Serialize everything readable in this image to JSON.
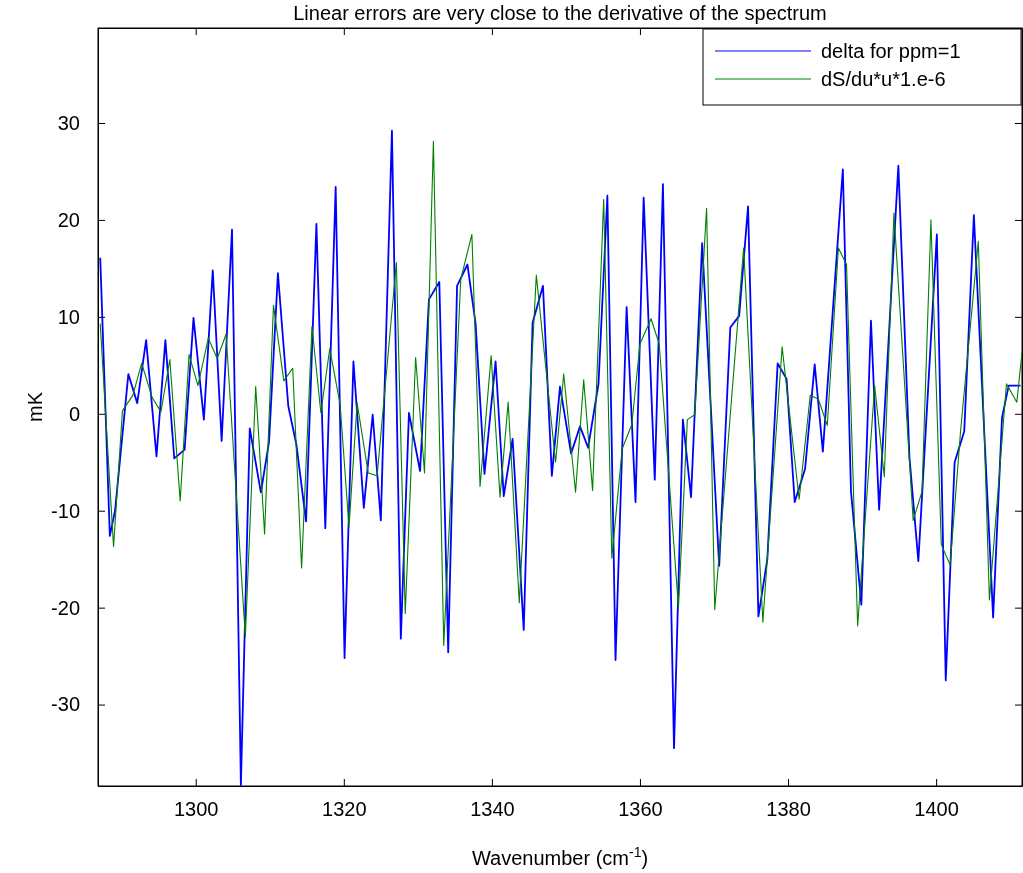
{
  "chart_data": {
    "type": "line",
    "title": "Linear errors are very close to the derivative of the spectrum",
    "xlabel": "Wavenumber (cm$^{-1}$)",
    "ylabel": "mK",
    "xlim": [
      1286.8,
      1411.6
    ],
    "ylim": [
      -38.4,
      39.8
    ],
    "xticks": [
      1300,
      1320,
      1340,
      1360,
      1380,
      1400
    ],
    "yticks": [
      -30,
      -20,
      -10,
      0,
      10,
      20,
      30
    ],
    "grid": false,
    "legend": "top right",
    "marker": "none",
    "line_style": "solid",
    "series": [
      {
        "name": "delta for ppm=1",
        "color": "#0000ff",
        "x": [
          1287.1,
          1288.4,
          1289.1,
          1290.9,
          1292.1,
          1293.3,
          1294.7,
          1295.9,
          1297.1,
          1298.5,
          1299.7,
          1301.1,
          1302.3,
          1303.5,
          1304.9,
          1306.1,
          1307.3,
          1308.8,
          1309.9,
          1311.1,
          1312.5,
          1313.6,
          1314.9,
          1316.3,
          1317.5,
          1318.9,
          1320.1,
          1321.3,
          1322.7,
          1323.9,
          1325.0,
          1326.5,
          1327.7,
          1328.8,
          1330.3,
          1331.5,
          1332.9,
          1334.1,
          1335.3,
          1336.7,
          1337.8,
          1339.0,
          1340.5,
          1341.6,
          1342.8,
          1344.3,
          1345.5,
          1346.9,
          1348.1,
          1349.2,
          1350.7,
          1351.9,
          1353.0,
          1354.4,
          1355.6,
          1356.7,
          1358.2,
          1359.4,
          1360.5,
          1362.0,
          1363.1,
          1364.6,
          1365.8,
          1366.9,
          1368.4,
          1370.7,
          1372.2,
          1373.4,
          1374.6,
          1376.0,
          1377.2,
          1378.6,
          1379.8,
          1380.9,
          1382.3,
          1383.6,
          1384.7,
          1387.4,
          1388.5,
          1389.9,
          1391.2,
          1392.3,
          1394.9,
          1396.4,
          1397.6,
          1400.1,
          1401.3,
          1402.5,
          1403.8,
          1405.1,
          1407.7,
          1408.9,
          1409.8,
          1411.4
        ],
        "values": [
          16.1,
          -12.6,
          -10.0,
          4.1,
          1.1,
          7.6,
          -4.4,
          7.6,
          -4.6,
          -3.7,
          9.9,
          -0.6,
          14.8,
          -2.8,
          19.0,
          -38.3,
          -1.5,
          -8.1,
          -2.9,
          14.5,
          0.8,
          -3.2,
          -11.1,
          19.6,
          -11.8,
          23.4,
          -25.2,
          5.4,
          -9.7,
          -0.1,
          -11.0,
          29.2,
          -23.2,
          0.1,
          -5.9,
          11.8,
          13.6,
          -24.6,
          13.2,
          15.4,
          9.3,
          -6.2,
          5.4,
          -8.5,
          -2.6,
          -22.3,
          9.4,
          13.2,
          -6.4,
          2.8,
          -4.1,
          -1.3,
          -3.5,
          3.1,
          22.5,
          -25.4,
          11.0,
          -9.1,
          22.3,
          -6.8,
          23.7,
          -34.5,
          -0.6,
          -8.6,
          17.6,
          -15.7,
          8.9,
          10.1,
          21.4,
          -20.9,
          -15.0,
          5.2,
          3.6,
          -9.1,
          -5.7,
          5.1,
          -3.9,
          25.2,
          -8.0,
          -19.7,
          9.6,
          -9.9,
          25.6,
          -4.5,
          -15.2,
          18.5,
          -27.5,
          -5.0,
          -1.8,
          20.5,
          -21.0,
          -0.4,
          2.9,
          2.9
        ]
      },
      {
        "name": "dS/du*u*1.e-6",
        "color": "#008000",
        "x": [
          1287.1,
          1288.9,
          1290.1,
          1291.5,
          1292.7,
          1294.1,
          1295.3,
          1296.5,
          1297.9,
          1299.1,
          1300.3,
          1301.7,
          1302.9,
          1304.1,
          1306.7,
          1308.1,
          1309.3,
          1310.5,
          1311.9,
          1313.1,
          1314.3,
          1315.7,
          1316.9,
          1318.1,
          1319.5,
          1320.7,
          1321.8,
          1323.3,
          1324.5,
          1327.1,
          1328.3,
          1329.7,
          1330.9,
          1332.1,
          1333.5,
          1335.8,
          1337.3,
          1338.4,
          1339.9,
          1341.1,
          1342.2,
          1343.7,
          1346.0,
          1348.6,
          1349.7,
          1351.3,
          1352.4,
          1353.6,
          1355.1,
          1356.2,
          1357.6,
          1358.9,
          1360.0,
          1361.5,
          1362.6,
          1365.2,
          1366.4,
          1367.4,
          1369.0,
          1370.1,
          1374.0,
          1376.6,
          1379.2,
          1381.5,
          1383.0,
          1384.1,
          1385.3,
          1386.8,
          1387.9,
          1389.4,
          1391.7,
          1393.0,
          1394.3,
          1396.9,
          1398.1,
          1399.3,
          1400.7,
          1401.9,
          1403.3,
          1405.7,
          1407.2,
          1409.5,
          1410.9,
          1411.6
        ],
        "values": [
          9.3,
          -13.7,
          0.3,
          1.9,
          5.2,
          1.7,
          0.2,
          5.6,
          -9.0,
          6.1,
          2.9,
          7.8,
          5.7,
          8.2,
          -23.0,
          2.8,
          -12.4,
          11.2,
          3.4,
          4.7,
          -15.9,
          9.0,
          0.1,
          6.7,
          1.0,
          -11.7,
          1.1,
          -6.1,
          -6.4,
          15.6,
          -20.6,
          5.8,
          -6.1,
          28.1,
          -23.9,
          13.9,
          18.5,
          -7.5,
          6.0,
          -8.6,
          1.2,
          -19.5,
          14.3,
          -5.0,
          4.1,
          -8.1,
          3.5,
          -7.9,
          22.1,
          -14.9,
          -3.6,
          -1.1,
          7.2,
          9.8,
          7.2,
          -20.0,
          -0.6,
          -0.1,
          21.2,
          -20.2,
          17.1,
          -21.5,
          6.9,
          -8.8,
          1.9,
          1.5,
          -1.2,
          17.1,
          15.4,
          -21.9,
          2.9,
          -6.5,
          20.7,
          -11.0,
          -8.0,
          20.0,
          -13.5,
          -15.6,
          -1.8,
          17.8,
          -19.2,
          3.1,
          1.2,
          6.3
        ]
      }
    ]
  }
}
